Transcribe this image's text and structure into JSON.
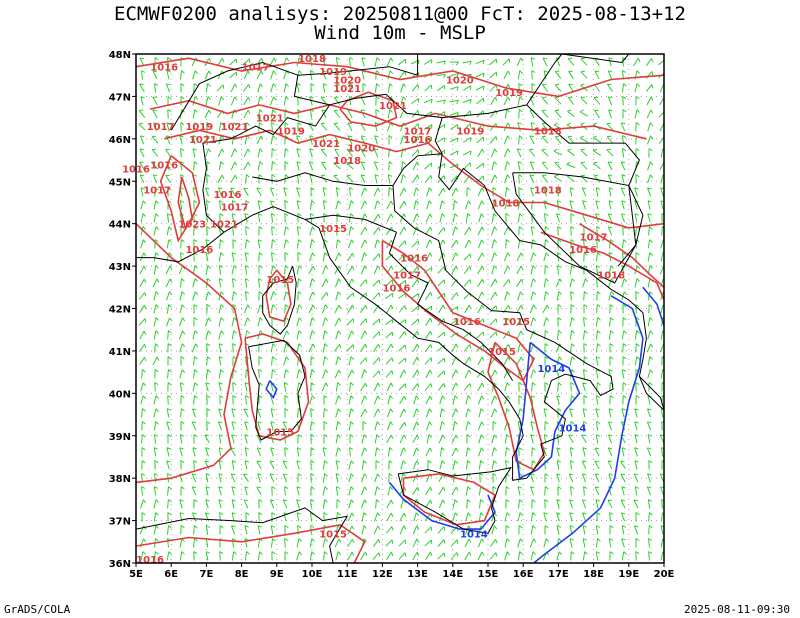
{
  "header": {
    "title_line1": "ECMWF0200 analisys: 20250811@00 FcT: 2025-08-13+12",
    "title_line2": "Wind 10m - MSLP"
  },
  "footer": {
    "credit": "GrADS/COLA",
    "timestamp": "2025-08-11-09:30"
  },
  "map": {
    "lon_range": [
      5,
      20
    ],
    "lat_range": [
      36,
      48
    ],
    "lon_ticks": [
      "5E",
      "6E",
      "7E",
      "8E",
      "9E",
      "10E",
      "11E",
      "12E",
      "13E",
      "14E",
      "15E",
      "16E",
      "17E",
      "18E",
      "19E",
      "20E"
    ],
    "lat_ticks": [
      "36N",
      "37N",
      "38N",
      "39N",
      "40N",
      "41N",
      "42N",
      "43N",
      "44N",
      "45N",
      "46N",
      "47N",
      "48N"
    ],
    "colors": {
      "high_isobar": "#e03c3c",
      "low_isobar": "#1f3fe6",
      "wind_barb": "#2ad12a",
      "border": "#000000"
    },
    "isobar_labels": [
      {
        "text": "1016",
        "lon": 5.8,
        "lat": 47.7,
        "color": "#e03c3c"
      },
      {
        "text": "1017",
        "lon": 8.4,
        "lat": 47.7,
        "color": "#e03c3c"
      },
      {
        "text": "1018",
        "lon": 10.0,
        "lat": 47.9,
        "color": "#e03c3c"
      },
      {
        "text": "1019",
        "lon": 10.6,
        "lat": 47.6,
        "color": "#e03c3c"
      },
      {
        "text": "1020",
        "lon": 11.0,
        "lat": 47.4,
        "color": "#e03c3c"
      },
      {
        "text": "1021",
        "lon": 11.0,
        "lat": 47.2,
        "color": "#e03c3c"
      },
      {
        "text": "1020",
        "lon": 14.2,
        "lat": 47.4,
        "color": "#e03c3c"
      },
      {
        "text": "1019",
        "lon": 15.6,
        "lat": 47.1,
        "color": "#e03c3c"
      },
      {
        "text": "1021",
        "lon": 12.3,
        "lat": 46.8,
        "color": "#e03c3c"
      },
      {
        "text": "1017",
        "lon": 5.7,
        "lat": 46.3,
        "color": "#e03c3c"
      },
      {
        "text": "1019",
        "lon": 6.8,
        "lat": 46.3,
        "color": "#e03c3c"
      },
      {
        "text": "1021",
        "lon": 6.9,
        "lat": 46.0,
        "color": "#e03c3c"
      },
      {
        "text": "1021",
        "lon": 7.8,
        "lat": 46.3,
        "color": "#e03c3c"
      },
      {
        "text": "1021",
        "lon": 8.8,
        "lat": 46.5,
        "color": "#e03c3c"
      },
      {
        "text": "1019",
        "lon": 9.4,
        "lat": 46.2,
        "color": "#e03c3c"
      },
      {
        "text": "1021",
        "lon": 10.4,
        "lat": 45.9,
        "color": "#e03c3c"
      },
      {
        "text": "1020",
        "lon": 11.4,
        "lat": 45.8,
        "color": "#e03c3c"
      },
      {
        "text": "1018",
        "lon": 11.0,
        "lat": 45.5,
        "color": "#e03c3c"
      },
      {
        "text": "1017",
        "lon": 13.0,
        "lat": 46.2,
        "color": "#e03c3c"
      },
      {
        "text": "1016",
        "lon": 13.0,
        "lat": 46.0,
        "color": "#e03c3c"
      },
      {
        "text": "1019",
        "lon": 14.5,
        "lat": 46.2,
        "color": "#e03c3c"
      },
      {
        "text": "1018",
        "lon": 16.7,
        "lat": 46.2,
        "color": "#e03c3c"
      },
      {
        "text": "1016",
        "lon": 5.0,
        "lat": 45.3,
        "color": "#e03c3c"
      },
      {
        "text": "1016",
        "lon": 5.8,
        "lat": 45.4,
        "color": "#e03c3c"
      },
      {
        "text": "1017",
        "lon": 5.6,
        "lat": 44.8,
        "color": "#e03c3c"
      },
      {
        "text": "1018",
        "lon": 16.7,
        "lat": 44.8,
        "color": "#e03c3c"
      },
      {
        "text": "1018",
        "lon": 15.5,
        "lat": 44.5,
        "color": "#e03c3c"
      },
      {
        "text": "1016",
        "lon": 7.6,
        "lat": 44.7,
        "color": "#e03c3c"
      },
      {
        "text": "1017",
        "lon": 7.8,
        "lat": 44.4,
        "color": "#e03c3c"
      },
      {
        "text": "1021",
        "lon": 7.5,
        "lat": 44.0,
        "color": "#e03c3c"
      },
      {
        "text": "1023",
        "lon": 6.6,
        "lat": 44.0,
        "color": "#e03c3c"
      },
      {
        "text": "1016",
        "lon": 6.8,
        "lat": 43.4,
        "color": "#e03c3c"
      },
      {
        "text": "1015",
        "lon": 10.6,
        "lat": 43.9,
        "color": "#e03c3c"
      },
      {
        "text": "1017",
        "lon": 18.0,
        "lat": 43.7,
        "color": "#e03c3c"
      },
      {
        "text": "1016",
        "lon": 17.7,
        "lat": 43.4,
        "color": "#e03c3c"
      },
      {
        "text": "1016",
        "lon": 12.9,
        "lat": 43.2,
        "color": "#e03c3c"
      },
      {
        "text": "1017",
        "lon": 12.7,
        "lat": 42.8,
        "color": "#e03c3c"
      },
      {
        "text": "1018",
        "lon": 18.5,
        "lat": 42.8,
        "color": "#e03c3c"
      },
      {
        "text": "1016",
        "lon": 12.4,
        "lat": 42.5,
        "color": "#e03c3c"
      },
      {
        "text": "1015",
        "lon": 9.1,
        "lat": 42.7,
        "color": "#e03c3c"
      },
      {
        "text": "1016",
        "lon": 14.4,
        "lat": 41.7,
        "color": "#e03c3c"
      },
      {
        "text": "1015",
        "lon": 15.8,
        "lat": 41.7,
        "color": "#e03c3c"
      },
      {
        "text": "1015",
        "lon": 15.4,
        "lat": 41.0,
        "color": "#e03c3c"
      },
      {
        "text": "1014",
        "lon": 16.8,
        "lat": 40.6,
        "color": "#1f3fe6"
      },
      {
        "text": "1015",
        "lon": 9.1,
        "lat": 39.1,
        "color": "#e03c3c"
      },
      {
        "text": "1014",
        "lon": 17.4,
        "lat": 39.2,
        "color": "#1f3fe6"
      },
      {
        "text": "1015",
        "lon": 10.6,
        "lat": 36.7,
        "color": "#e03c3c"
      },
      {
        "text": "1014",
        "lon": 14.6,
        "lat": 36.7,
        "color": "#1f3fe6"
      },
      {
        "text": "1016",
        "lon": 5.4,
        "lat": 36.1,
        "color": "#e03c3c"
      }
    ]
  }
}
